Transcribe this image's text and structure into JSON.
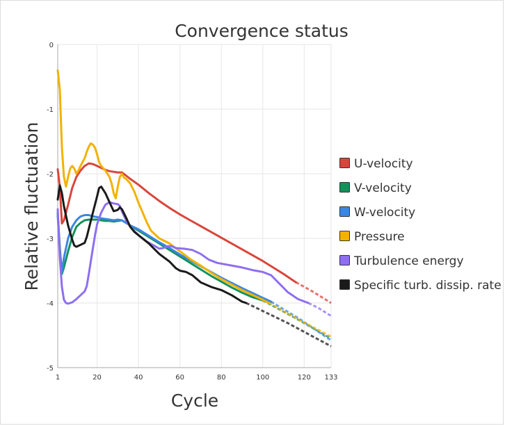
{
  "chart_data": {
    "type": "line",
    "title": "Convergence status",
    "xlabel": "Cycle",
    "ylabel": "Relative fluctuation",
    "xlim": [
      1,
      133
    ],
    "ylim": [
      -5,
      0
    ],
    "xticks": [
      1,
      20,
      40,
      60,
      80,
      100,
      120,
      133
    ],
    "yticks": [
      0,
      -1,
      -2,
      -3,
      -4,
      -5
    ],
    "grid": true,
    "legend_position": "right",
    "series": [
      {
        "name": "U-velocity",
        "color": "#d9453b",
        "points": [
          [
            1,
            -1.93
          ],
          [
            2,
            -2.2
          ],
          [
            3,
            -2.77
          ],
          [
            4,
            -2.72
          ],
          [
            6,
            -2.48
          ],
          [
            8,
            -2.22
          ],
          [
            10,
            -2.05
          ],
          [
            12,
            -1.95
          ],
          [
            14,
            -1.88
          ],
          [
            16,
            -1.84
          ],
          [
            18,
            -1.85
          ],
          [
            20,
            -1.88
          ],
          [
            22,
            -1.91
          ],
          [
            24,
            -1.94
          ],
          [
            26,
            -1.96
          ],
          [
            28,
            -1.97
          ],
          [
            30,
            -1.98
          ],
          [
            32,
            -1.98
          ],
          [
            34,
            -2.03
          ],
          [
            36,
            -2.08
          ],
          [
            40,
            -2.17
          ],
          [
            45,
            -2.3
          ],
          [
            50,
            -2.42
          ],
          [
            55,
            -2.53
          ],
          [
            60,
            -2.63
          ],
          [
            65,
            -2.72
          ],
          [
            70,
            -2.81
          ],
          [
            80,
            -2.99
          ],
          [
            90,
            -3.17
          ],
          [
            100,
            -3.35
          ],
          [
            110,
            -3.55
          ],
          [
            116,
            -3.68
          ]
        ],
        "projection": [
          [
            116,
            -3.68
          ],
          [
            124,
            -3.82
          ],
          [
            133,
            -4.0
          ]
        ]
      },
      {
        "name": "V-velocity",
        "color": "#13925a",
        "points": [
          [
            1,
            -2.6
          ],
          [
            2,
            -3.15
          ],
          [
            3,
            -3.55
          ],
          [
            4,
            -3.45
          ],
          [
            6,
            -3.2
          ],
          [
            8,
            -2.98
          ],
          [
            10,
            -2.82
          ],
          [
            12,
            -2.76
          ],
          [
            14,
            -2.72
          ],
          [
            16,
            -2.71
          ],
          [
            18,
            -2.71
          ],
          [
            20,
            -2.71
          ],
          [
            22,
            -2.72
          ],
          [
            24,
            -2.73
          ],
          [
            26,
            -2.73
          ],
          [
            28,
            -2.74
          ],
          [
            30,
            -2.73
          ],
          [
            32,
            -2.72
          ],
          [
            34,
            -2.76
          ],
          [
            36,
            -2.8
          ],
          [
            40,
            -2.88
          ],
          [
            45,
            -2.98
          ],
          [
            50,
            -3.08
          ],
          [
            55,
            -3.18
          ],
          [
            60,
            -3.28
          ],
          [
            65,
            -3.38
          ],
          [
            70,
            -3.48
          ],
          [
            75,
            -3.58
          ],
          [
            80,
            -3.67
          ],
          [
            85,
            -3.76
          ],
          [
            90,
            -3.84
          ],
          [
            95,
            -3.91
          ],
          [
            100,
            -3.96
          ]
        ],
        "projection": [
          [
            100,
            -3.96
          ],
          [
            115,
            -4.22
          ],
          [
            133,
            -4.55
          ]
        ]
      },
      {
        "name": "W-velocity",
        "color": "#3b86e3",
        "points": [
          [
            1,
            -2.65
          ],
          [
            2,
            -3.2
          ],
          [
            3,
            -3.52
          ],
          [
            4,
            -3.3
          ],
          [
            6,
            -3.0
          ],
          [
            8,
            -2.82
          ],
          [
            10,
            -2.72
          ],
          [
            12,
            -2.66
          ],
          [
            14,
            -2.64
          ],
          [
            16,
            -2.64
          ],
          [
            18,
            -2.66
          ],
          [
            20,
            -2.67
          ],
          [
            22,
            -2.69
          ],
          [
            24,
            -2.7
          ],
          [
            26,
            -2.71
          ],
          [
            28,
            -2.72
          ],
          [
            30,
            -2.71
          ],
          [
            32,
            -2.72
          ],
          [
            34,
            -2.76
          ],
          [
            36,
            -2.8
          ],
          [
            40,
            -2.86
          ],
          [
            45,
            -2.96
          ],
          [
            50,
            -3.06
          ],
          [
            55,
            -3.15
          ],
          [
            60,
            -3.25
          ],
          [
            65,
            -3.34
          ],
          [
            70,
            -3.43
          ],
          [
            80,
            -3.61
          ],
          [
            90,
            -3.77
          ],
          [
            100,
            -3.92
          ],
          [
            104,
            -3.98
          ]
        ],
        "projection": [
          [
            104,
            -3.98
          ],
          [
            118,
            -4.25
          ],
          [
            133,
            -4.58
          ]
        ]
      },
      {
        "name": "Pressure",
        "color": "#f2b200",
        "points": [
          [
            1,
            -0.4
          ],
          [
            2,
            -0.7
          ],
          [
            3,
            -1.6
          ],
          [
            4,
            -2.05
          ],
          [
            5,
            -2.2
          ],
          [
            6,
            -2.05
          ],
          [
            7,
            -1.92
          ],
          [
            8,
            -1.88
          ],
          [
            9,
            -1.92
          ],
          [
            10,
            -2.0
          ],
          [
            11,
            -1.95
          ],
          [
            12,
            -1.88
          ],
          [
            13,
            -1.82
          ],
          [
            14,
            -1.76
          ],
          [
            15,
            -1.66
          ],
          [
            16,
            -1.58
          ],
          [
            17,
            -1.53
          ],
          [
            18,
            -1.55
          ],
          [
            19,
            -1.6
          ],
          [
            20,
            -1.7
          ],
          [
            21,
            -1.82
          ],
          [
            22,
            -1.88
          ],
          [
            24,
            -1.95
          ],
          [
            26,
            -2.05
          ],
          [
            27,
            -2.15
          ],
          [
            28,
            -2.3
          ],
          [
            29,
            -2.38
          ],
          [
            30,
            -2.2
          ],
          [
            31,
            -2.05
          ],
          [
            32,
            -2.0
          ],
          [
            33,
            -2.06
          ],
          [
            34,
            -2.08
          ],
          [
            36,
            -2.15
          ],
          [
            38,
            -2.28
          ],
          [
            40,
            -2.45
          ],
          [
            42,
            -2.6
          ],
          [
            44,
            -2.75
          ],
          [
            46,
            -2.88
          ],
          [
            50,
            -3.0
          ],
          [
            55,
            -3.08
          ],
          [
            60,
            -3.2
          ],
          [
            65,
            -3.32
          ],
          [
            70,
            -3.42
          ],
          [
            75,
            -3.53
          ],
          [
            80,
            -3.63
          ],
          [
            90,
            -3.8
          ],
          [
            100,
            -3.95
          ],
          [
            103,
            -4.0
          ]
        ],
        "projection": [
          [
            103,
            -4.0
          ],
          [
            118,
            -4.27
          ],
          [
            133,
            -4.52
          ]
        ]
      },
      {
        "name": "Turbulence energy",
        "color": "#8e6ef0",
        "points": [
          [
            1,
            -2.55
          ],
          [
            2,
            -3.3
          ],
          [
            3,
            -3.75
          ],
          [
            4,
            -3.95
          ],
          [
            5,
            -4.0
          ],
          [
            6,
            -4.01
          ],
          [
            8,
            -3.99
          ],
          [
            10,
            -3.94
          ],
          [
            12,
            -3.88
          ],
          [
            14,
            -3.82
          ],
          [
            15,
            -3.74
          ],
          [
            16,
            -3.55
          ],
          [
            17,
            -3.35
          ],
          [
            18,
            -3.15
          ],
          [
            19,
            -2.95
          ],
          [
            20,
            -2.78
          ],
          [
            22,
            -2.6
          ],
          [
            24,
            -2.48
          ],
          [
            26,
            -2.44
          ],
          [
            28,
            -2.46
          ],
          [
            30,
            -2.47
          ],
          [
            31,
            -2.5
          ],
          [
            32,
            -2.58
          ],
          [
            34,
            -2.72
          ],
          [
            36,
            -2.82
          ],
          [
            40,
            -2.95
          ],
          [
            44,
            -3.05
          ],
          [
            48,
            -3.12
          ],
          [
            50,
            -3.16
          ],
          [
            52,
            -3.15
          ],
          [
            54,
            -3.12
          ],
          [
            56,
            -3.12
          ],
          [
            58,
            -3.15
          ],
          [
            62,
            -3.16
          ],
          [
            66,
            -3.18
          ],
          [
            70,
            -3.24
          ],
          [
            74,
            -3.33
          ],
          [
            78,
            -3.38
          ],
          [
            85,
            -3.42
          ],
          [
            90,
            -3.45
          ],
          [
            95,
            -3.49
          ],
          [
            100,
            -3.52
          ],
          [
            104,
            -3.57
          ],
          [
            108,
            -3.7
          ],
          [
            112,
            -3.83
          ],
          [
            117,
            -3.94
          ],
          [
            122,
            -4.0
          ]
        ],
        "projection": [
          [
            122,
            -4.0
          ],
          [
            127,
            -4.08
          ],
          [
            133,
            -4.2
          ]
        ]
      },
      {
        "name": "Specific turb. dissip. rate",
        "color": "#1a1a1a",
        "points": [
          [
            1,
            -2.4
          ],
          [
            2,
            -2.18
          ],
          [
            3,
            -2.3
          ],
          [
            4,
            -2.5
          ],
          [
            6,
            -2.8
          ],
          [
            8,
            -3.02
          ],
          [
            9,
            -3.11
          ],
          [
            10,
            -3.13
          ],
          [
            12,
            -3.1
          ],
          [
            14,
            -3.07
          ],
          [
            15,
            -2.98
          ],
          [
            16,
            -2.85
          ],
          [
            18,
            -2.6
          ],
          [
            20,
            -2.35
          ],
          [
            21,
            -2.22
          ],
          [
            22,
            -2.2
          ],
          [
            24,
            -2.3
          ],
          [
            26,
            -2.44
          ],
          [
            28,
            -2.58
          ],
          [
            30,
            -2.56
          ],
          [
            31,
            -2.52
          ],
          [
            32,
            -2.55
          ],
          [
            34,
            -2.68
          ],
          [
            36,
            -2.82
          ],
          [
            38,
            -2.9
          ],
          [
            40,
            -2.95
          ],
          [
            45,
            -3.08
          ],
          [
            50,
            -3.24
          ],
          [
            55,
            -3.36
          ],
          [
            58,
            -3.46
          ],
          [
            60,
            -3.5
          ],
          [
            63,
            -3.52
          ],
          [
            66,
            -3.57
          ],
          [
            70,
            -3.68
          ],
          [
            75,
            -3.75
          ],
          [
            80,
            -3.8
          ],
          [
            85,
            -3.88
          ],
          [
            90,
            -3.98
          ],
          [
            92,
            -4.0
          ]
        ],
        "projection": [
          [
            92,
            -4.0
          ],
          [
            112,
            -4.31
          ],
          [
            133,
            -4.67
          ]
        ]
      }
    ]
  }
}
